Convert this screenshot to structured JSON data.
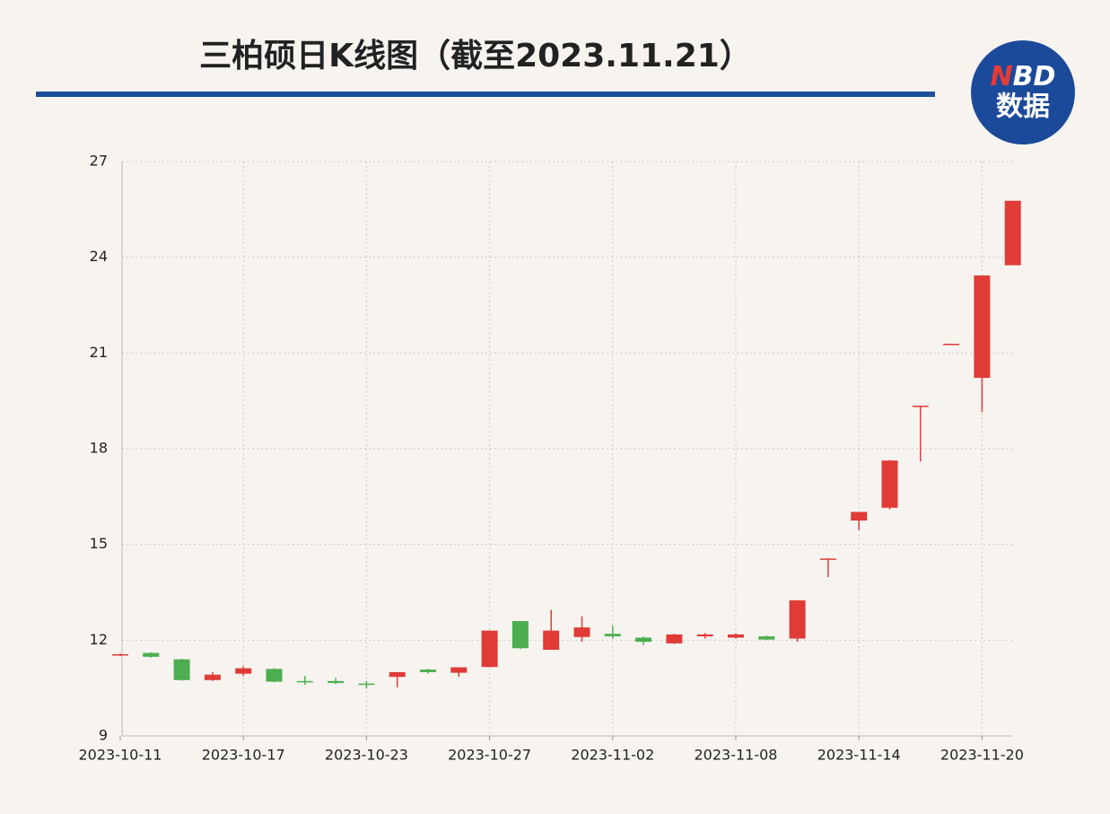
{
  "chart_data": {
    "type": "candlestick",
    "title": "三柏硕日K线图（截至2023.11.21）",
    "categories": [
      "2023-10-11",
      null,
      null,
      null,
      "2023-10-17",
      null,
      null,
      null,
      "2023-10-23",
      null,
      null,
      null,
      "2023-10-27",
      null,
      null,
      null,
      "2023-11-02",
      null,
      null,
      null,
      "2023-11-08",
      null,
      null,
      null,
      "2023-11-14",
      null,
      null,
      null,
      "2023-11-20",
      null
    ],
    "open": [
      11.52,
      11.6,
      11.4,
      10.75,
      10.95,
      11.1,
      10.72,
      10.72,
      10.64,
      10.85,
      11.08,
      10.98,
      11.16,
      12.6,
      11.7,
      12.1,
      12.2,
      12.08,
      11.9,
      12.12,
      12.08,
      12.12,
      12.05,
      14.56,
      15.75,
      16.15,
      19.35,
      21.29,
      20.22,
      23.75
    ],
    "high": [
      11.58,
      11.62,
      11.42,
      11.0,
      11.18,
      11.12,
      10.88,
      10.82,
      10.72,
      11.0,
      11.1,
      11.15,
      12.3,
      12.6,
      12.95,
      12.75,
      12.45,
      12.12,
      12.2,
      12.22,
      12.22,
      12.15,
      13.25,
      14.56,
      16.02,
      17.65,
      19.35,
      21.29,
      23.43,
      25.77
    ],
    "low": [
      11.5,
      11.45,
      10.73,
      10.72,
      10.88,
      10.68,
      10.6,
      10.62,
      10.48,
      10.52,
      10.95,
      10.85,
      11.15,
      11.72,
      11.7,
      11.95,
      12.05,
      11.85,
      11.88,
      12.05,
      12.05,
      12.0,
      11.95,
      13.98,
      15.45,
      16.1,
      17.6,
      21.29,
      19.15,
      23.75
    ],
    "close": [
      11.56,
      11.48,
      10.75,
      10.92,
      11.12,
      10.7,
      10.68,
      10.66,
      10.6,
      11.0,
      11.0,
      11.15,
      12.3,
      11.75,
      12.3,
      12.4,
      12.12,
      11.95,
      12.18,
      12.18,
      12.18,
      12.02,
      13.25,
      14.56,
      16.02,
      17.63,
      19.35,
      21.29,
      23.43,
      25.77
    ],
    "up_color": "#e03b36",
    "down_color": "#4cae4f",
    "ylim": [
      9,
      27
    ],
    "yticks": [
      9,
      12,
      15,
      18,
      21,
      24,
      27
    ],
    "grid": true
  },
  "logo": {
    "mark_red": "N",
    "mark_white": "BD",
    "label": "数据"
  }
}
